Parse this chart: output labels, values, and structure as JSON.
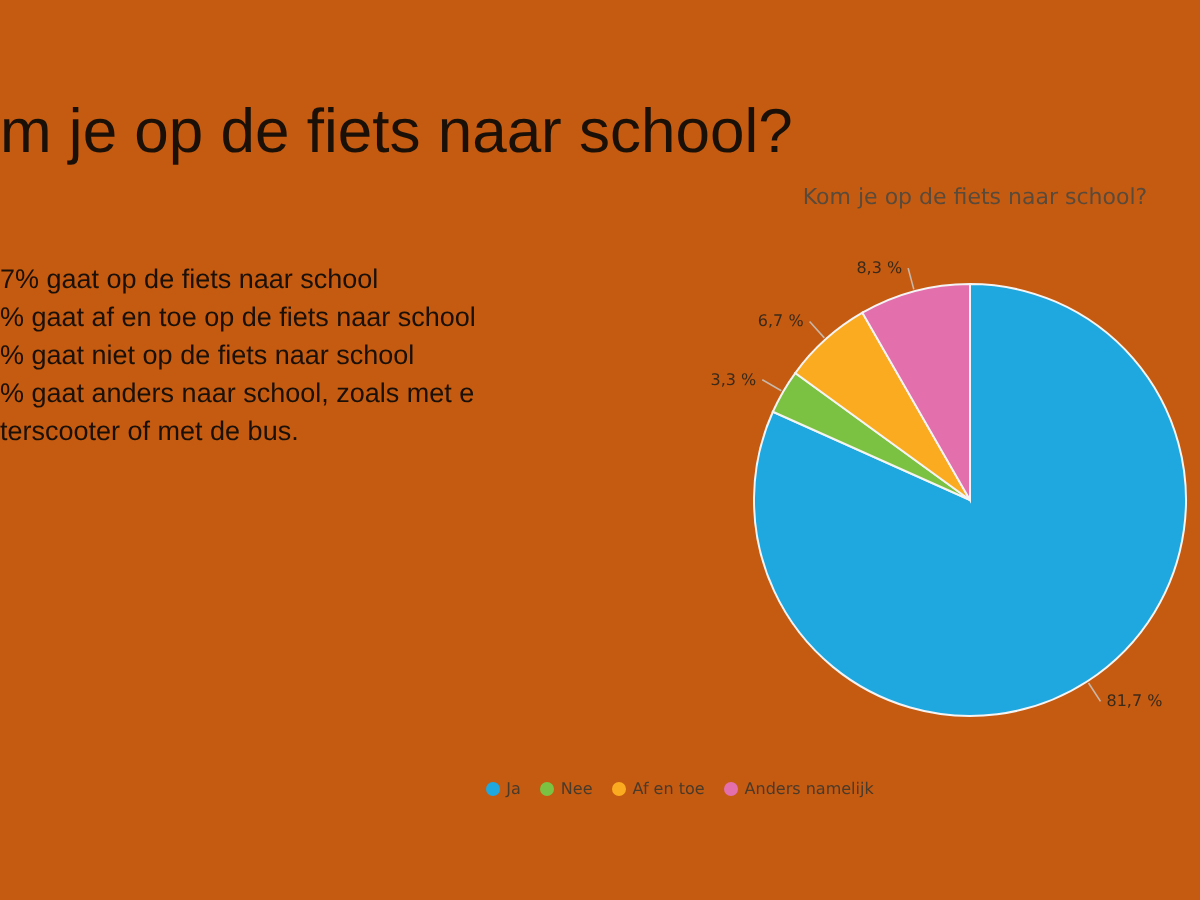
{
  "chart_data": {
    "type": "pie",
    "title": "Kom je op de fiets naar school?",
    "categories": [
      "Ja",
      "Nee",
      "Af en toe",
      "Anders namelijk"
    ],
    "values": [
      81.7,
      3.3,
      6.7,
      8.3
    ],
    "colors": [
      "#1fa8e0",
      "#7cc242",
      "#fbab1f",
      "#e36fad"
    ],
    "value_labels": [
      "81,7 %",
      "3,3 %",
      "6,7 %",
      "8,3 %"
    ],
    "legend": "bottom",
    "annotations": [
      "m je op de fiets naar school?",
      "7% gaat op de fiets naar school",
      "% gaat af en toe op de fiets naar school",
      "% gaat niet op de fiets naar school",
      "% gaat anders naar school, zoals met e",
      "terscooter of met de bus."
    ]
  }
}
